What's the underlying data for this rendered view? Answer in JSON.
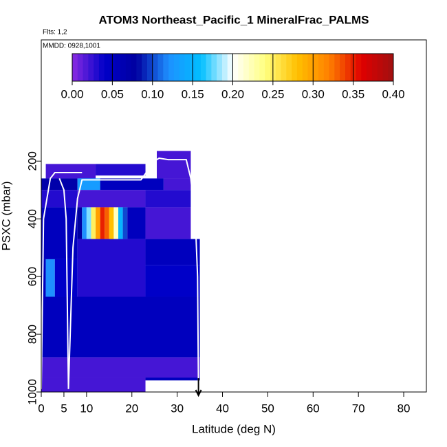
{
  "chart_data": {
    "type": "heatmap",
    "title": "ATOM3 Northeast_Pacific_1 MineralFrac_PALMS",
    "annotations": [
      "Flts: 1,2",
      "MMDD: 0928,1001"
    ],
    "xlabel": "Latitude (deg N)",
    "ylabel": "PSXC (mbar)",
    "xlim": [
      0,
      85
    ],
    "xticks": [
      0,
      5,
      10,
      20,
      30,
      40,
      50,
      60,
      70,
      80
    ],
    "ylim": [
      1000,
      -220
    ],
    "yticks": [
      200,
      400,
      600,
      800,
      1000
    ],
    "colorbar": {
      "lim": [
        0,
        0.4
      ],
      "ticks": [
        {
          "value": 0,
          "label": "0.00"
        },
        {
          "value": 0.05,
          "label": "0.05"
        },
        {
          "value": 0.1,
          "label": "0.10"
        },
        {
          "value": 0.15,
          "label": "0.15"
        },
        {
          "value": 0.2,
          "label": "0.20"
        },
        {
          "value": 0.25,
          "label": "0.25"
        },
        {
          "value": 0.3,
          "label": "0.30"
        },
        {
          "value": 0.35,
          "label": "0.35"
        },
        {
          "value": 0.4,
          "label": "0.40"
        }
      ],
      "colors": [
        "#8a2be2",
        "#0000c8",
        "#0000a0",
        "#1e90ff",
        "#00bfff",
        "#ffffff",
        "#ffff80",
        "#ffc000",
        "#ff8000",
        "#e00000",
        "#a01010"
      ]
    },
    "cells": [
      {
        "lat": [
          1,
          12
        ],
        "p": [
          210,
          260
        ],
        "value": 0.02
      },
      {
        "lat": [
          12,
          23
        ],
        "p": [
          210,
          250
        ],
        "value": 0.03
      },
      {
        "lat": [
          25.5,
          33
        ],
        "p": [
          165,
          260
        ],
        "value": 0.02
      },
      {
        "lat": [
          0,
          8
        ],
        "p": [
          260,
          300
        ],
        "value": 0.07
      },
      {
        "lat": [
          8,
          13
        ],
        "p": [
          260,
          300
        ],
        "value": 0.13
      },
      {
        "lat": [
          13,
          27
        ],
        "p": [
          260,
          300
        ],
        "value": 0.05
      },
      {
        "lat": [
          27,
          33
        ],
        "p": [
          260,
          300
        ],
        "value": 0.02
      },
      {
        "lat": [
          0,
          8
        ],
        "p": [
          300,
          360
        ],
        "value": 0.03
      },
      {
        "lat": [
          8,
          23
        ],
        "p": [
          300,
          360
        ],
        "value": 0.02
      },
      {
        "lat": [
          23,
          33
        ],
        "p": [
          300,
          360
        ],
        "value": 0.03
      },
      {
        "lat": [
          0,
          8
        ],
        "p": [
          360,
          540
        ],
        "value": 0.05
      },
      {
        "lat": [
          8,
          9
        ],
        "p": [
          360,
          470
        ],
        "value": 0.08
      },
      {
        "lat": [
          9,
          10
        ],
        "p": [
          360,
          470
        ],
        "value": 0.12
      },
      {
        "lat": [
          10,
          11
        ],
        "p": [
          360,
          470
        ],
        "value": 0.18
      },
      {
        "lat": [
          11,
          12
        ],
        "p": [
          360,
          470
        ],
        "value": 0.25
      },
      {
        "lat": [
          12,
          13
        ],
        "p": [
          360,
          470
        ],
        "value": 0.3
      },
      {
        "lat": [
          13,
          14
        ],
        "p": [
          360,
          470
        ],
        "value": 0.35
      },
      {
        "lat": [
          14,
          15
        ],
        "p": [
          360,
          470
        ],
        "value": 0.33
      },
      {
        "lat": [
          15,
          16
        ],
        "p": [
          360,
          470
        ],
        "value": 0.28
      },
      {
        "lat": [
          16,
          17
        ],
        "p": [
          360,
          470
        ],
        "value": 0.22
      },
      {
        "lat": [
          17,
          18
        ],
        "p": [
          360,
          470
        ],
        "value": 0.15
      },
      {
        "lat": [
          18,
          19
        ],
        "p": [
          360,
          470
        ],
        "value": 0.1
      },
      {
        "lat": [
          19,
          23
        ],
        "p": [
          360,
          470
        ],
        "value": 0.05
      },
      {
        "lat": [
          23,
          33
        ],
        "p": [
          360,
          470
        ],
        "value": 0.02
      },
      {
        "lat": [
          23,
          35
        ],
        "p": [
          470,
          560
        ],
        "value": 0.05
      },
      {
        "lat": [
          0,
          1
        ],
        "p": [
          540,
          670
        ],
        "value": 0.05
      },
      {
        "lat": [
          1,
          3
        ],
        "p": [
          540,
          670
        ],
        "value": 0.12
      },
      {
        "lat": [
          3,
          8
        ],
        "p": [
          540,
          670
        ],
        "value": 0.04
      },
      {
        "lat": [
          8,
          23
        ],
        "p": [
          470,
          670
        ],
        "value": 0.03
      },
      {
        "lat": [
          23,
          35
        ],
        "p": [
          560,
          670
        ],
        "value": 0.04
      },
      {
        "lat": [
          0,
          35
        ],
        "p": [
          670,
          880
        ],
        "value": 0.05
      },
      {
        "lat": [
          0,
          35
        ],
        "p": [
          880,
          950
        ],
        "value": 0.02
      },
      {
        "lat": [
          0,
          23
        ],
        "p": [
          950,
          1000
        ],
        "value": 0.02
      },
      {
        "lat": [
          23,
          35
        ],
        "p": [
          950,
          960
        ],
        "value": 0.05
      }
    ],
    "track": {
      "color": "#ffffff",
      "x": [
        0,
        0.5,
        2,
        3,
        9,
        null,
        4,
        5,
        5.5,
        6,
        null,
        6,
        7,
        8,
        9,
        22,
        25,
        26,
        28,
        32,
        33,
        34,
        34.5,
        34.7
      ],
      "y": [
        990,
        400,
        260,
        240,
        240,
        null,
        260,
        300,
        400,
        990,
        null,
        990,
        500,
        330,
        265,
        265,
        200,
        190,
        195,
        195,
        260,
        400,
        600,
        990
      ]
    }
  }
}
